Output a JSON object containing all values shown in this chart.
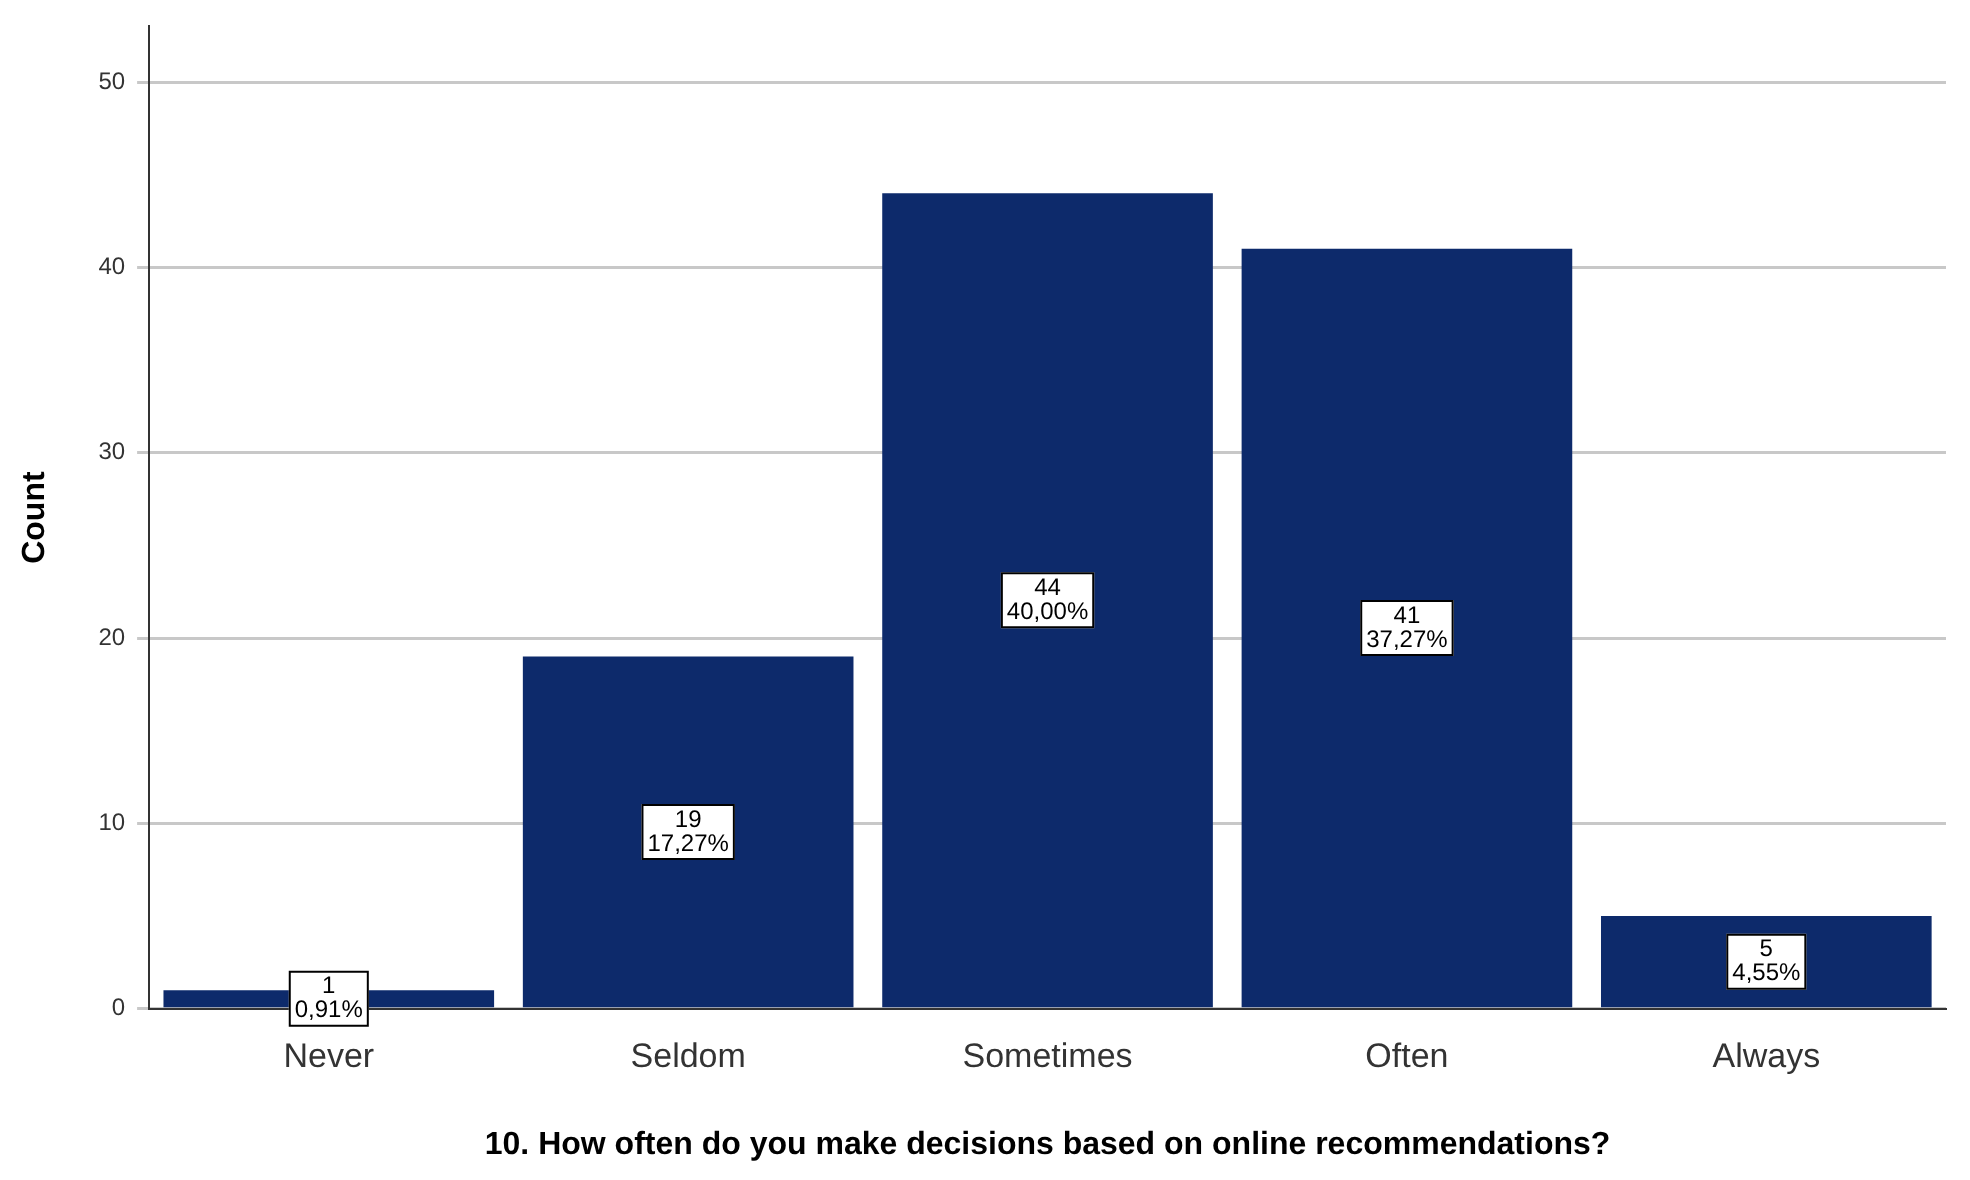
{
  "chart_data": {
    "type": "bar",
    "xlabel": "10. How often do you make decisions based on online recommendations?",
    "ylabel": "Count",
    "categories": [
      "Never",
      "Seldom",
      "Sometimes",
      "Often",
      "Always"
    ],
    "values": [
      1,
      19,
      44,
      41,
      5
    ],
    "value_labels": [
      "1\n0,91%",
      "19\n17,27%",
      "44\n40,00%",
      "41\n37,27%",
      "5\n4,55%"
    ],
    "color": "#0d2a6b",
    "ylim": [
      0,
      53
    ],
    "yticks": [
      0,
      10,
      20,
      30,
      40,
      50
    ],
    "grid": "y",
    "legend": false
  }
}
